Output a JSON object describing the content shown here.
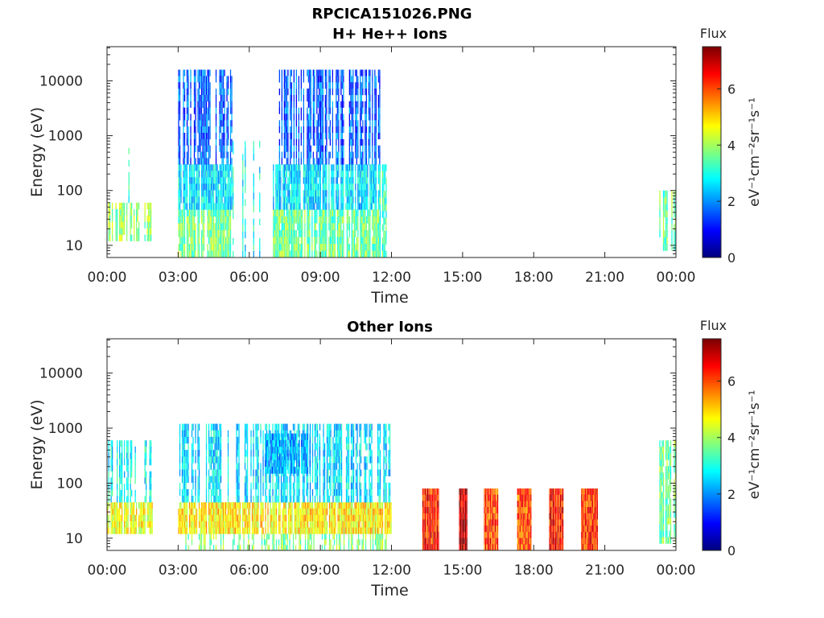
{
  "figure_title": "RPCICA151026.PNG",
  "chart_data": [
    {
      "type": "heatmap",
      "title": "H+ He++ Ions",
      "xlabel": "Time",
      "ylabel": "Energy (eV)",
      "x_ticks": [
        "00:00",
        "03:00",
        "06:00",
        "09:00",
        "12:00",
        "15:00",
        "18:00",
        "21:00",
        "00:00"
      ],
      "xlim_hours": [
        0,
        24
      ],
      "y_scale": "log",
      "y_ticks": [
        10,
        100,
        1000,
        10000
      ],
      "y_tick_labels": [
        "10",
        "100",
        "1000",
        "10000"
      ],
      "ylim": [
        6,
        42000
      ],
      "colorbar": {
        "label": "Flux",
        "units": "eV⁻¹cm⁻²sr⁻¹s⁻¹",
        "range": [
          0,
          7.5
        ],
        "ticks": [
          "0",
          "2",
          "4",
          "6"
        ],
        "colormap": "jet"
      },
      "blocks": [
        {
          "t_start": 0.0,
          "t_end": 1.9,
          "e_min": 12,
          "e_max": 60,
          "level": 3.9,
          "density": 0.6
        },
        {
          "t_start": 0.8,
          "t_end": 0.95,
          "e_min": 60,
          "e_max": 600,
          "level": 3.3,
          "density": 0.4
        },
        {
          "t_start": 3.0,
          "t_end": 5.25,
          "e_min": 6,
          "e_max": 45,
          "level": 3.7,
          "density": 0.85
        },
        {
          "t_start": 3.0,
          "t_end": 5.25,
          "e_min": 45,
          "e_max": 300,
          "level": 2.6,
          "density": 0.85
        },
        {
          "t_start": 3.0,
          "t_end": 5.25,
          "e_min": 300,
          "e_max": 16000,
          "level": 1.6,
          "density": 0.6
        },
        {
          "t_start": 5.3,
          "t_end": 6.9,
          "e_min": 6,
          "e_max": 800,
          "level": 2.8,
          "density": 0.25
        },
        {
          "t_start": 7.0,
          "t_end": 11.5,
          "e_min": 6,
          "e_max": 45,
          "level": 3.6,
          "density": 0.85
        },
        {
          "t_start": 7.0,
          "t_end": 11.5,
          "e_min": 45,
          "e_max": 300,
          "level": 2.6,
          "density": 0.85
        },
        {
          "t_start": 7.0,
          "t_end": 11.5,
          "e_min": 300,
          "e_max": 16000,
          "level": 1.6,
          "density": 0.6
        },
        {
          "t_start": 11.5,
          "t_end": 12.0,
          "e_min": 6,
          "e_max": 300,
          "level": 3.3,
          "density": 0.35
        },
        {
          "t_start": 23.3,
          "t_end": 24.0,
          "e_min": 8,
          "e_max": 100,
          "level": 3.6,
          "density": 0.5
        }
      ]
    },
    {
      "type": "heatmap",
      "title": "Other Ions",
      "xlabel": "Time",
      "ylabel": "Energy (eV)",
      "x_ticks": [
        "00:00",
        "03:00",
        "06:00",
        "09:00",
        "12:00",
        "15:00",
        "18:00",
        "21:00",
        "00:00"
      ],
      "xlim_hours": [
        0,
        24
      ],
      "y_scale": "log",
      "y_ticks": [
        10,
        100,
        1000,
        10000
      ],
      "y_tick_labels": [
        "10",
        "100",
        "1000",
        "10000"
      ],
      "ylim": [
        6,
        42000
      ],
      "colorbar": {
        "label": "Flux",
        "units": "eV⁻¹cm⁻²sr⁻¹s⁻¹",
        "range": [
          0,
          7.5
        ],
        "ticks": [
          "0",
          "2",
          "4",
          "6"
        ],
        "colormap": "jet"
      },
      "blocks": [
        {
          "t_start": 0.0,
          "t_end": 1.9,
          "e_min": 12,
          "e_max": 45,
          "level": 4.6,
          "density": 0.85
        },
        {
          "t_start": 0.0,
          "t_end": 1.9,
          "e_min": 45,
          "e_max": 600,
          "level": 2.8,
          "density": 0.5
        },
        {
          "t_start": 3.0,
          "t_end": 12.0,
          "e_min": 12,
          "e_max": 45,
          "level": 4.8,
          "density": 0.9
        },
        {
          "t_start": 3.0,
          "t_end": 12.0,
          "e_min": 6,
          "e_max": 12,
          "level": 3.8,
          "density": 0.5
        },
        {
          "t_start": 3.0,
          "t_end": 12.0,
          "e_min": 45,
          "e_max": 1200,
          "level": 2.6,
          "density": 0.55
        },
        {
          "t_start": 6.5,
          "t_end": 9.0,
          "e_min": 150,
          "e_max": 800,
          "level": 2.2,
          "density": 0.7
        },
        {
          "t_start": 13.3,
          "t_end": 14.0,
          "e_min": 6,
          "e_max": 80,
          "level": 6.4,
          "density": 1.0
        },
        {
          "t_start": 14.85,
          "t_end": 15.2,
          "e_min": 6,
          "e_max": 80,
          "level": 7.0,
          "density": 1.0
        },
        {
          "t_start": 15.9,
          "t_end": 16.5,
          "e_min": 6,
          "e_max": 80,
          "level": 6.1,
          "density": 1.0
        },
        {
          "t_start": 17.3,
          "t_end": 17.9,
          "e_min": 6,
          "e_max": 80,
          "level": 6.0,
          "density": 1.0
        },
        {
          "t_start": 18.65,
          "t_end": 19.25,
          "e_min": 6,
          "e_max": 80,
          "level": 6.5,
          "density": 1.0
        },
        {
          "t_start": 20.0,
          "t_end": 20.7,
          "e_min": 6,
          "e_max": 80,
          "level": 6.2,
          "density": 1.0
        },
        {
          "t_start": 23.3,
          "t_end": 24.0,
          "e_min": 8,
          "e_max": 600,
          "level": 3.6,
          "density": 0.55
        }
      ]
    }
  ]
}
